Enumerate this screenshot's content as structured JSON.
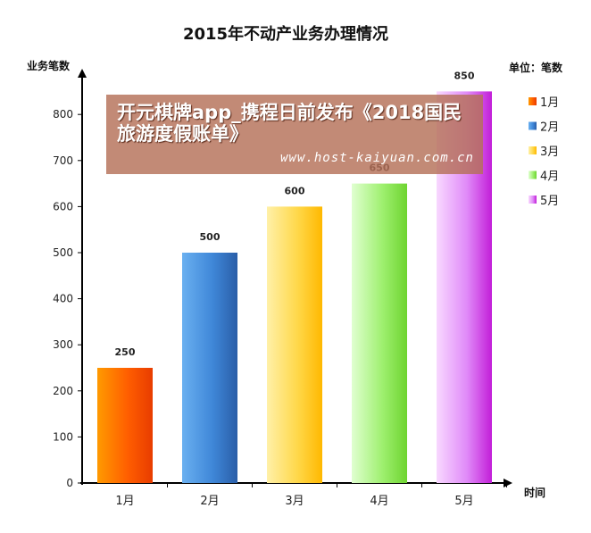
{
  "chart_data": {
    "type": "bar",
    "title": "2015年不动产业务办理情况",
    "ylabel": "业务笔数",
    "xlabel": "时间",
    "unit_label": "单位：笔数",
    "categories": [
      "1月",
      "2月",
      "3月",
      "4月",
      "5月"
    ],
    "values": [
      250,
      500,
      600,
      650,
      850
    ],
    "ylim": [
      0,
      900
    ],
    "yticks": [
      0,
      100,
      200,
      300,
      400,
      500,
      600,
      700,
      800
    ],
    "legend": [
      "1月",
      "2月",
      "3月",
      "4月",
      "5月"
    ],
    "legend_position": "right",
    "grid": false,
    "colors": [
      [
        "#ff9a00",
        "#ff5e00",
        "#e83c00"
      ],
      [
        "#6ab0f0",
        "#3f87d8",
        "#2a5ea8"
      ],
      [
        "#fff0a8",
        "#ffd84a",
        "#ffb800"
      ],
      [
        "#e0ffd0",
        "#9ff070",
        "#6ed430"
      ],
      [
        "#f8d8ff",
        "#e08af8",
        "#c21ed8"
      ]
    ]
  },
  "overlay": {
    "headline": "开元棋牌app_携程日前发布《2018国民旅游度假账单》",
    "url": "www.host-kaiyuan.com.cn"
  }
}
